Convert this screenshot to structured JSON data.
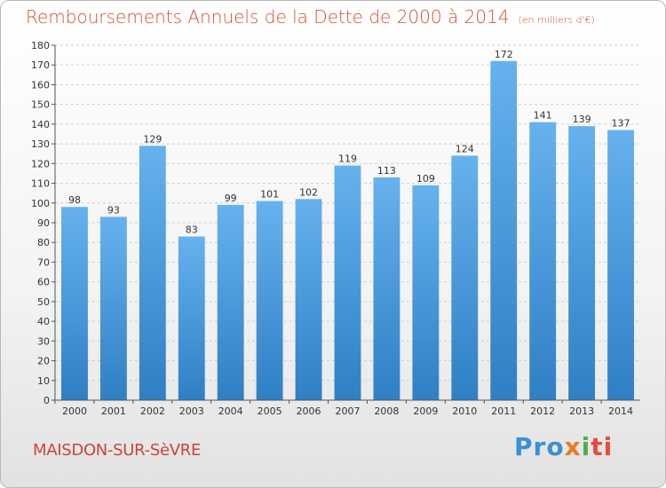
{
  "header": {
    "title": "Remboursements Annuels de la Dette de 2000 à 2014",
    "unit": "(en milliers d'€)"
  },
  "footer": {
    "commune": "MAISDON-SUR-SèVRE",
    "logo": {
      "p1": "Pro",
      "p2": "x",
      "p3": "i",
      "p4": "ti"
    }
  },
  "colors": {
    "bar_light": "#66b2ee",
    "bar_dark": "#2f7fc4",
    "title": "#d2532f"
  },
  "chart_data": {
    "type": "bar",
    "title": "Remboursements Annuels de la Dette de 2000 à 2014",
    "ylabel": "en milliers d'€",
    "categories": [
      "2000",
      "2001",
      "2002",
      "2003",
      "2004",
      "2005",
      "2006",
      "2007",
      "2008",
      "2009",
      "2010",
      "2011",
      "2012",
      "2013",
      "2014"
    ],
    "values": [
      98,
      93,
      129,
      83,
      99,
      101,
      102,
      119,
      113,
      109,
      124,
      172,
      141,
      139,
      137
    ],
    "ylim": [
      0,
      180
    ],
    "yticks": [
      0,
      10,
      20,
      30,
      40,
      50,
      60,
      70,
      80,
      90,
      100,
      110,
      120,
      130,
      140,
      150,
      160,
      170,
      180
    ],
    "grid": true
  }
}
